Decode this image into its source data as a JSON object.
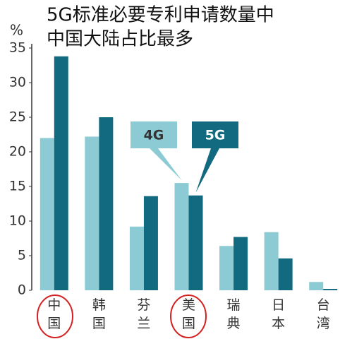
{
  "chart_data": {
    "type": "bar",
    "title_lines": [
      "5G标准必要专利申请数量中",
      "中国大陆占比最多"
    ],
    "y_label": "%",
    "categories": [
      "中国",
      "韩国",
      "芬兰",
      "美国",
      "瑞典",
      "日本",
      "台湾"
    ],
    "series": [
      {
        "name": "4G",
        "color": "#8ccbd3",
        "values": [
          22,
          22.2,
          9.2,
          15.5,
          6.4,
          8.4,
          1.2
        ]
      },
      {
        "name": "5G",
        "color": "#116a80",
        "values": [
          33.8,
          25,
          13.6,
          13.7,
          7.7,
          4.6,
          0.2
        ]
      }
    ],
    "ylim": [
      0,
      35
    ],
    "yticks": [
      0,
      5,
      10,
      15,
      20,
      25,
      30,
      35
    ]
  }
}
